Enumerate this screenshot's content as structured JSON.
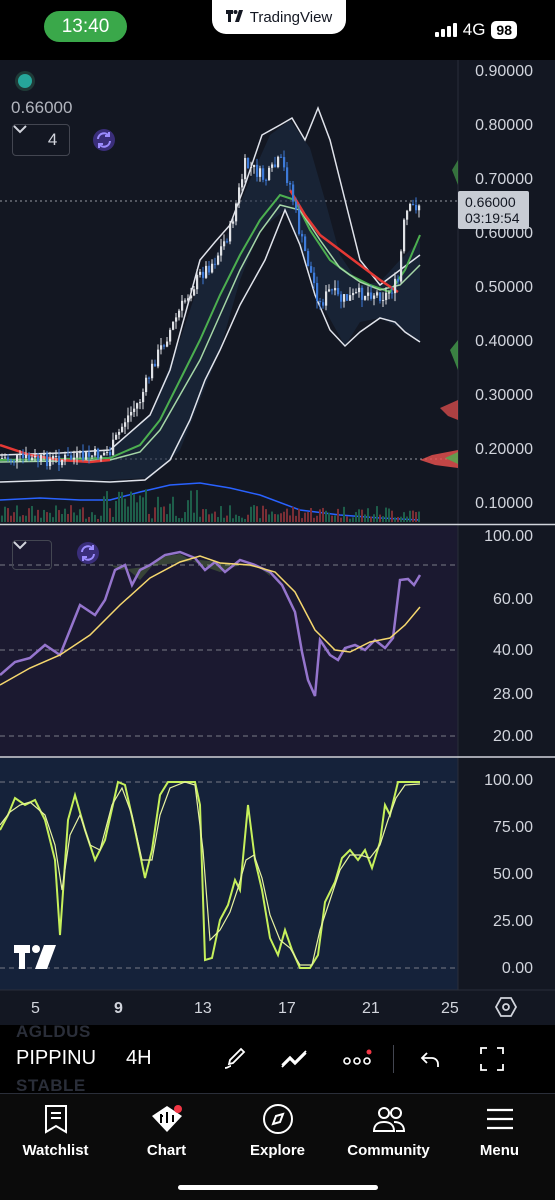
{
  "status_bar": {
    "time": "13:40",
    "app_name": "TradingView",
    "network": "4G",
    "battery": "98"
  },
  "chart": {
    "overlay_price": "0.66000",
    "collapse_count": "4",
    "current_price": "0.66000",
    "countdown": "03:19:54",
    "price_axis": [
      "0.90000",
      "0.80000",
      "0.70000",
      "0.60000",
      "0.50000",
      "0.40000",
      "0.30000",
      "0.20000",
      "0.10000"
    ],
    "rsi_axis": [
      "100.00",
      "60.00",
      "40.00",
      "28.00",
      "20.00"
    ],
    "stoch_axis": [
      "100.00",
      "75.00",
      "50.00",
      "25.00",
      "0.00"
    ],
    "time_axis": [
      "5",
      "9",
      "13",
      "17",
      "21",
      "25"
    ],
    "colors": {
      "background": "#131722",
      "up": "#dfe1e5",
      "down": "#3d7ad8",
      "ma_fast": "#e53935",
      "ma_slow": "#4caf50",
      "rsi": "#9575cd",
      "rsi_ma": "#f5d76e",
      "stoch_k": "#c6f05b",
      "stoch_d": "#e6f2a0"
    }
  },
  "toolbar": {
    "ghost_top": "AGLDUS",
    "ghost_bottom": "STABLE",
    "symbol": "PIPPINU",
    "timeframe": "4H"
  },
  "tabs": [
    {
      "label": "Watchlist",
      "icon": "bookmark-icon"
    },
    {
      "label": "Chart",
      "icon": "chart-icon"
    },
    {
      "label": "Explore",
      "icon": "compass-icon"
    },
    {
      "label": "Community",
      "icon": "people-icon"
    },
    {
      "label": "Menu",
      "icon": "menu-icon"
    }
  ]
}
